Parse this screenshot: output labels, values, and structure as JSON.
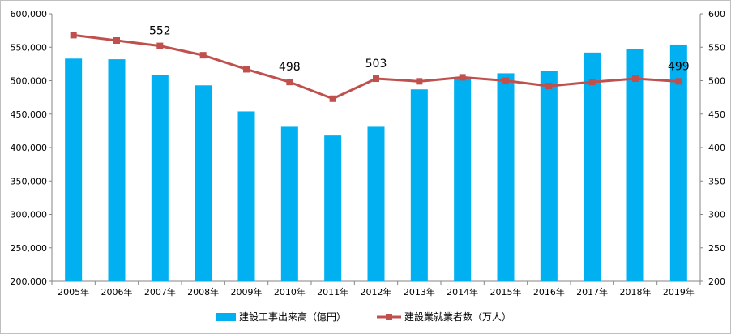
{
  "chart_data": {
    "type": "bar",
    "categories": [
      "2005年",
      "2006年",
      "2007年",
      "2008年",
      "2009年",
      "2010年",
      "2011年",
      "2012年",
      "2013年",
      "2014年",
      "2015年",
      "2016年",
      "2017年",
      "2018年",
      "2019年"
    ],
    "series": [
      {
        "name": "建設工事出来高（億円）",
        "type": "bar",
        "axis": "left",
        "color": "#00b0f0",
        "values": [
          533000,
          532000,
          509000,
          493000,
          454000,
          431000,
          418000,
          431000,
          487000,
          505000,
          511000,
          514000,
          542000,
          547000,
          554000
        ]
      },
      {
        "name": "建設業就業者数（万人）",
        "type": "line",
        "axis": "right",
        "color": "#c0504d",
        "values": [
          568,
          560,
          552,
          538,
          517,
          498,
          473,
          503,
          499,
          505,
          500,
          492,
          498,
          503,
          499
        ]
      }
    ],
    "left_axis": {
      "min": 200000,
      "max": 600000,
      "step": 50000,
      "tick_labels": [
        "200,000",
        "250,000",
        "300,000",
        "350,000",
        "400,000",
        "450,000",
        "500,000",
        "550,000",
        "600,000"
      ]
    },
    "right_axis": {
      "min": 200,
      "max": 600,
      "step": 50,
      "tick_labels": [
        "200",
        "250",
        "300",
        "350",
        "400",
        "450",
        "500",
        "550",
        "600"
      ]
    },
    "data_labels": [
      {
        "index": 2,
        "text": "552"
      },
      {
        "index": 5,
        "text": "498"
      },
      {
        "index": 7,
        "text": "503"
      },
      {
        "index": 14,
        "text": "499"
      }
    ],
    "legend_position": "bottom",
    "grid": false
  }
}
